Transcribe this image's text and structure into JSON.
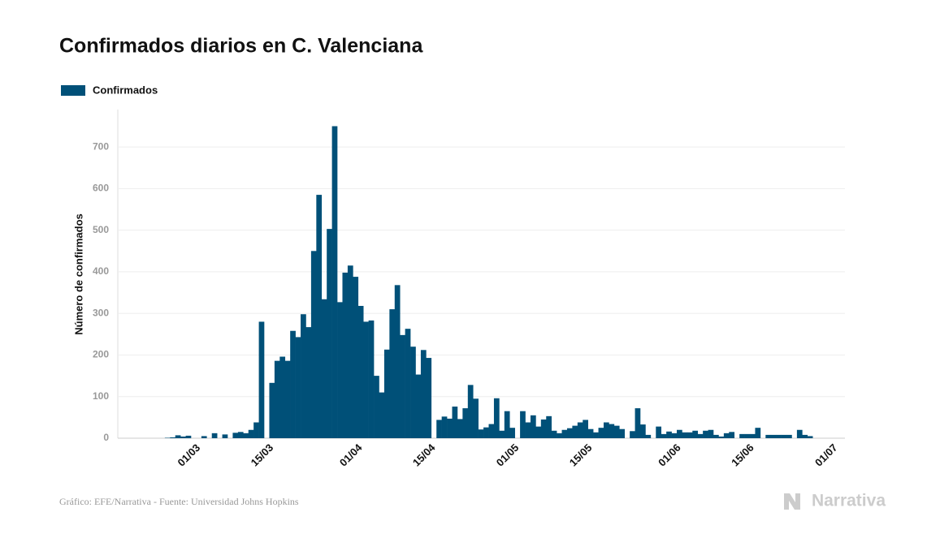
{
  "chart_data": {
    "type": "bar",
    "title": "Confirmados diarios en C. Valenciana",
    "y_label": "Número de confirmados",
    "source": "Gráfico: EFE/Narrativa - Fuente: Universidad Johns Hopkins",
    "logo": "Narrativa",
    "categories": [
      null,
      null,
      null,
      null,
      null,
      null,
      null,
      null,
      "01/03",
      null,
      null,
      null,
      null,
      null,
      null,
      null,
      null,
      null,
      null,
      null,
      null,
      null,
      "15/03",
      null,
      null,
      null,
      null,
      null,
      null,
      null,
      null,
      null,
      null,
      null,
      null,
      null,
      null,
      null,
      null,
      "01/04",
      null,
      null,
      null,
      null,
      null,
      null,
      null,
      null,
      null,
      null,
      null,
      null,
      null,
      "15/04",
      null,
      null,
      null,
      null,
      null,
      null,
      null,
      null,
      null,
      null,
      null,
      null,
      null,
      null,
      null,
      "01/05",
      null,
      null,
      null,
      null,
      null,
      null,
      null,
      null,
      null,
      null,
      null,
      null,
      null,
      "15/05",
      null,
      null,
      null,
      null,
      null,
      null,
      null,
      null,
      null,
      null,
      null,
      null,
      null,
      null,
      null,
      null,
      "01/06",
      null,
      null,
      null,
      null,
      null,
      null,
      null,
      null,
      null,
      null,
      null,
      null,
      null,
      "15/06",
      null,
      null,
      null,
      null,
      null,
      null,
      null,
      null,
      null,
      null,
      null,
      null,
      null,
      null,
      null,
      "01/07"
    ],
    "series": [
      {
        "name": "Confirmados",
        "color": "#005078",
        "values": [
          0,
          0,
          1,
          2,
          7,
          4,
          6,
          0,
          0,
          5,
          0,
          12,
          0,
          9,
          0,
          13,
          15,
          12,
          20,
          38,
          280,
          0,
          133,
          186,
          196,
          186,
          258,
          243,
          298,
          267,
          450,
          585,
          334,
          503,
          750,
          327,
          398,
          415,
          388,
          318,
          280,
          283,
          150,
          110,
          213,
          310,
          368,
          248,
          263,
          220,
          153,
          212,
          193,
          0,
          44,
          52,
          47,
          76,
          46,
          72,
          128,
          95,
          21,
          26,
          34,
          96,
          18,
          65,
          25,
          0,
          65,
          38,
          55,
          28,
          45,
          53,
          18,
          12,
          20,
          24,
          30,
          38,
          44,
          22,
          14,
          25,
          38,
          34,
          30,
          22,
          0,
          17,
          72,
          33,
          8,
          0,
          28,
          10,
          16,
          12,
          20,
          14,
          14,
          18,
          10,
          18,
          20,
          8,
          4,
          12,
          15,
          0,
          10,
          10,
          10,
          25,
          0,
          8,
          8,
          8,
          8,
          8,
          0,
          20,
          8,
          5,
          0,
          0,
          0,
          0,
          0
        ]
      }
    ],
    "ylim": [
      0,
      790
    ],
    "yticks": [
      0,
      100,
      200,
      300,
      400,
      500,
      600,
      700
    ],
    "grid": true
  }
}
